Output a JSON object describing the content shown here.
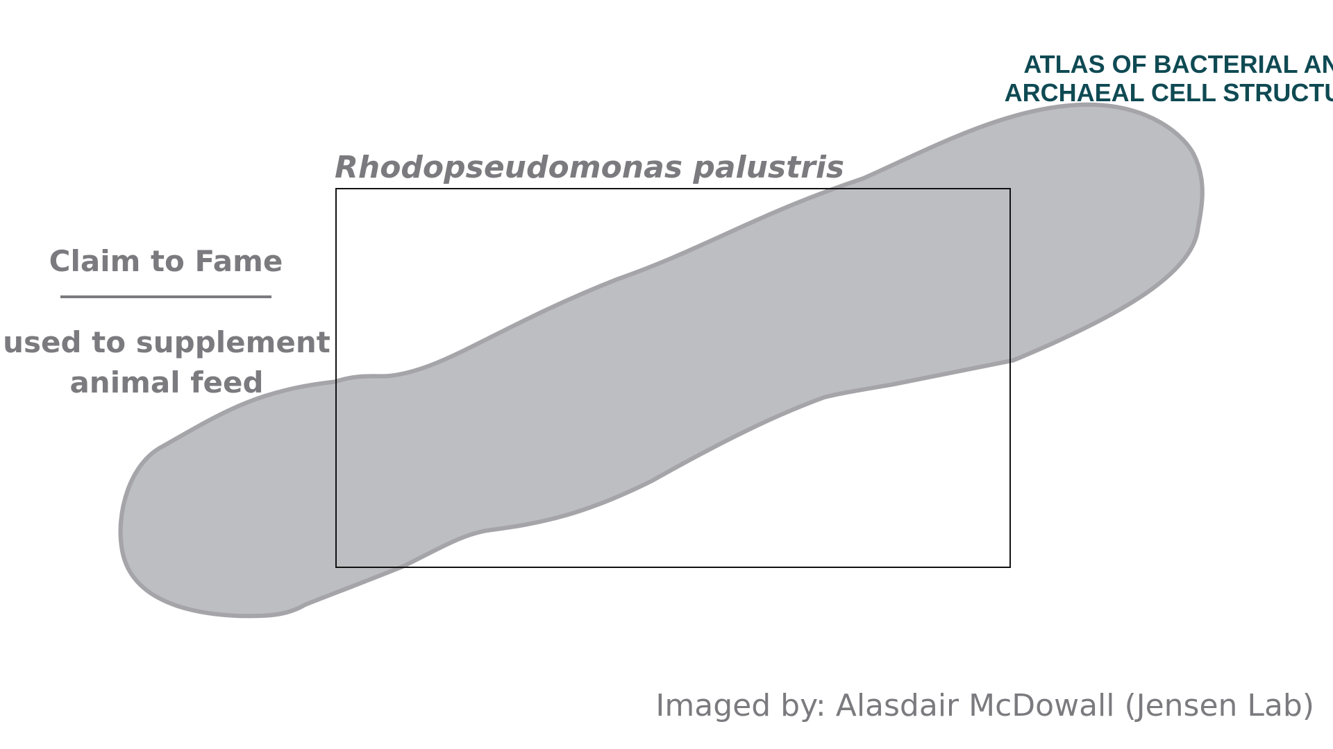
{
  "header": {
    "logo_line_1": "ATLAS OF BACTERIAL AND",
    "logo_line_2": "ARCHAEAL CELL STRUCTURE"
  },
  "specimen": {
    "title": "Rhodopseudomonas palustris"
  },
  "claim": {
    "heading": "Claim to Fame",
    "lines": [
      "used to supplement",
      "animal feed"
    ]
  },
  "credit": "Imaged by: Alasdair McDowall (Jensen Lab)"
}
